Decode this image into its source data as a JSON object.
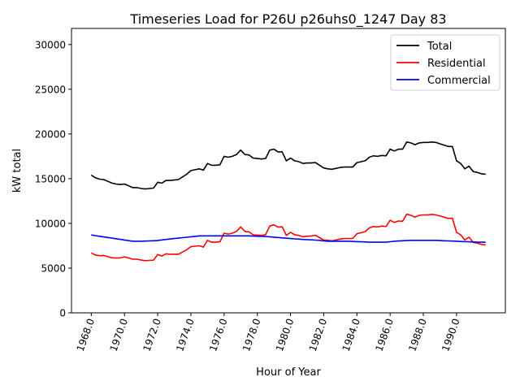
{
  "chart_data": {
    "type": "line",
    "title": "Timeseries Load for P26U p26uhs0_1247  Day 83",
    "xlabel": "Hour of Year",
    "ylabel": "kW total",
    "xlim": [
      1966.81,
      1992.94
    ],
    "ylim": [
      0,
      31800
    ],
    "x_start": 1968.0,
    "x_step": 0.25,
    "xticks": [
      1968,
      1970,
      1972,
      1974,
      1976,
      1978,
      1980,
      1982,
      1984,
      1986,
      1988,
      1990
    ],
    "xtick_labels": [
      "1968.0",
      "1970.0",
      "1972.0",
      "1974.0",
      "1976.0",
      "1978.0",
      "1980.0",
      "1982.0",
      "1984.0",
      "1986.0",
      "1988.0",
      "1990.0"
    ],
    "yticks": [
      0,
      5000,
      10000,
      15000,
      20000,
      25000,
      30000
    ],
    "ytick_labels": [
      "0",
      "5000",
      "10000",
      "15000",
      "20000",
      "25000",
      "30000"
    ],
    "grid": false,
    "legend_position": "top-right",
    "series": [
      {
        "name": "Total",
        "color": "#000000",
        "values": [
          15400,
          15100,
          14950,
          14900,
          14700,
          14500,
          14400,
          14350,
          14400,
          14200,
          14000,
          14000,
          13900,
          13850,
          13900,
          13950,
          14600,
          14500,
          14800,
          14800,
          14850,
          14900,
          15200,
          15500,
          15900,
          16000,
          16100,
          15950,
          16700,
          16500,
          16500,
          16550,
          17500,
          17400,
          17500,
          17700,
          18200,
          17700,
          17650,
          17300,
          17250,
          17200,
          17250,
          18200,
          18300,
          18000,
          18000,
          17000,
          17300,
          17000,
          16900,
          16700,
          16750,
          16750,
          16800,
          16500,
          16200,
          16100,
          16050,
          16150,
          16250,
          16300,
          16300,
          16300,
          16800,
          16900,
          17000,
          17400,
          17550,
          17500,
          17600,
          17550,
          18300,
          18100,
          18300,
          18300,
          19100,
          19000,
          18800,
          19000,
          19050,
          19050,
          19100,
          19050,
          18900,
          18750,
          18600,
          18600,
          17000,
          16700,
          16100,
          16400,
          15800,
          15700,
          15550,
          15500
        ]
      },
      {
        "name": "Residential",
        "color": "#ff0000",
        "values": [
          6700,
          6470,
          6390,
          6410,
          6280,
          6150,
          6120,
          6140,
          6260,
          6130,
          6000,
          6000,
          5900,
          5830,
          5860,
          5890,
          6520,
          6350,
          6600,
          6550,
          6550,
          6550,
          6800,
          7050,
          7400,
          7450,
          7500,
          7350,
          8100,
          7900,
          7900,
          7950,
          8900,
          8800,
          8900,
          9100,
          9600,
          9100,
          9050,
          8720,
          8690,
          8660,
          8730,
          9700,
          9840,
          9580,
          9620,
          8660,
          9000,
          8730,
          8660,
          8500,
          8570,
          8590,
          8670,
          8400,
          8150,
          8100,
          8050,
          8150,
          8250,
          8300,
          8300,
          8320,
          8840,
          8960,
          9080,
          9500,
          9650,
          9600,
          9700,
          9650,
          10350,
          10100,
          10270,
          10240,
          11020,
          10900,
          10700,
          10900,
          10950,
          10950,
          11000,
          10950,
          10820,
          10690,
          10560,
          10580,
          9000,
          8720,
          8140,
          8460,
          7880,
          7800,
          7650,
          7600
        ]
      },
      {
        "name": "Commercial",
        "color": "#0000ff",
        "values": [
          8700,
          8630,
          8560,
          8490,
          8420,
          8350,
          8280,
          8210,
          8140,
          8070,
          8000,
          8000,
          8000,
          8020,
          8040,
          8060,
          8080,
          8150,
          8200,
          8250,
          8300,
          8350,
          8400,
          8450,
          8500,
          8550,
          8600,
          8600,
          8600,
          8600,
          8600,
          8600,
          8600,
          8600,
          8600,
          8600,
          8600,
          8600,
          8600,
          8580,
          8560,
          8540,
          8520,
          8500,
          8460,
          8420,
          8380,
          8340,
          8300,
          8270,
          8240,
          8200,
          8180,
          8160,
          8130,
          8100,
          8050,
          8000,
          8000,
          8000,
          8000,
          8000,
          8000,
          7980,
          7960,
          7940,
          7920,
          7900,
          7900,
          7900,
          7900,
          7900,
          7950,
          8000,
          8030,
          8060,
          8080,
          8100,
          8100,
          8100,
          8100,
          8100,
          8100,
          8100,
          8080,
          8060,
          8040,
          8020,
          8000,
          7980,
          7960,
          7940,
          7920,
          7900,
          7900,
          7900
        ]
      }
    ]
  }
}
